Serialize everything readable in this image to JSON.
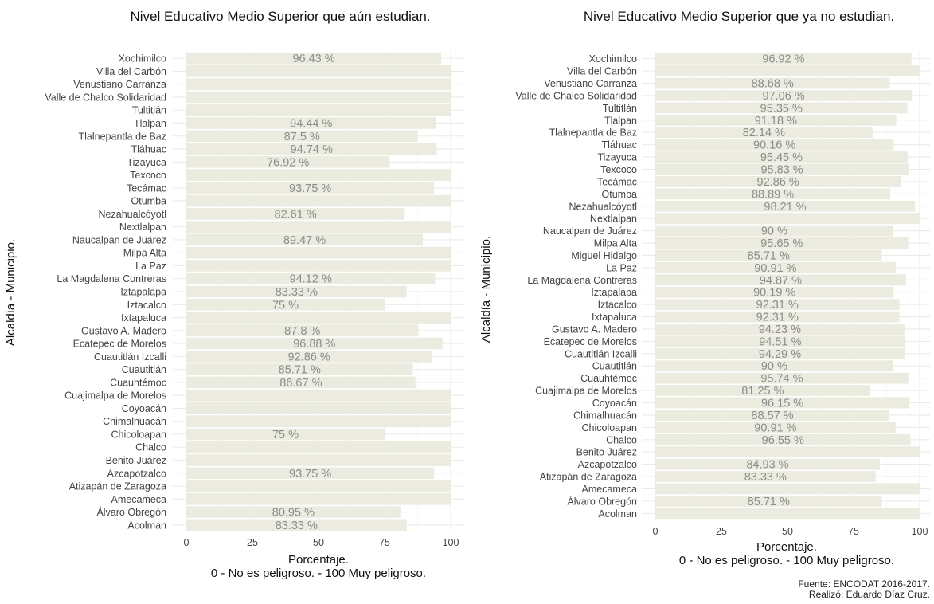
{
  "chart_data": [
    {
      "type": "bar",
      "orientation": "horizontal",
      "title": "Nivel Educativo Medio Superior que aún estudian.",
      "xlabel": "Porcentaje.",
      "xlabel_sub": "0 - No es peligroso. - 100 Muy peligroso.",
      "ylabel": "Alcaldía - Municipio.",
      "xlim": [
        0,
        100
      ],
      "xticks": [
        0,
        25,
        50,
        75,
        100
      ],
      "grid": true,
      "categories": [
        "Xochimilco",
        "Villa del Carbón",
        "Venustiano Carranza",
        "Valle de Chalco Solidaridad",
        "Tultitlán",
        "Tlalpan",
        "Tlalnepantla de Baz",
        "Tláhuac",
        "Tizayuca",
        "Texcoco",
        "Tecámac",
        "Otumba",
        "Nezahualcóyotl",
        "Nextlalpan",
        "Naucalpan de Juárez",
        "Milpa Alta",
        "La Paz",
        "La Magdalena Contreras",
        "Iztapalapa",
        "Iztacalco",
        "Ixtapaluca",
        "Gustavo A. Madero",
        "Ecatepec de Morelos",
        "Cuautitlán Izcalli",
        "Cuautitlán",
        "Cuauhtémoc",
        "Cuajimalpa de Morelos",
        "Coyoacán",
        "Chimalhuacán",
        "Chicoloapan",
        "Chalco",
        "Benito Juárez",
        "Azcapotzalco",
        "Atizapán de Zaragoza",
        "Amecameca",
        "Álvaro Obregón",
        "Acolman"
      ],
      "values": [
        96.43,
        100,
        100,
        100,
        100,
        94.44,
        87.5,
        94.74,
        76.92,
        100,
        93.75,
        100,
        82.61,
        100,
        89.47,
        100,
        100,
        94.12,
        83.33,
        75,
        100,
        87.8,
        96.88,
        92.86,
        85.71,
        86.67,
        100,
        100,
        100,
        75,
        100,
        100,
        93.75,
        100,
        100,
        80.95,
        83.33
      ],
      "labels": [
        "96.43 %",
        "",
        "",
        "",
        "",
        "94.44 %",
        "87.5 %",
        "94.74 %",
        "76.92 %",
        "",
        "93.75 %",
        "",
        "82.61 %",
        "",
        "89.47 %",
        "",
        "",
        "94.12 %",
        "83.33 %",
        "75 %",
        "",
        "87.8 %",
        "96.88 %",
        "92.86 %",
        "85.71 %",
        "86.67 %",
        "",
        "",
        "",
        "75 %",
        "",
        "",
        "93.75 %",
        "",
        "",
        "80.95 %",
        "83.33 %"
      ],
      "bar_color": "#ecebe0",
      "label_color": "#8c8c8c"
    },
    {
      "type": "bar",
      "orientation": "horizontal",
      "title": "Nivel Educativo Medio Superior que ya no estudian.",
      "xlabel": "Porcentaje.",
      "xlabel_sub": "0 - No es peligroso. - 100 Muy peligroso.",
      "ylabel": "Alcaldía - Municipio.",
      "xlim": [
        0,
        100
      ],
      "xticks": [
        0,
        25,
        50,
        75,
        100
      ],
      "grid": true,
      "categories": [
        "Xochimilco",
        "Villa del Carbón",
        "Venustiano Carranza",
        "Valle de Chalco Solidaridad",
        "Tultitlán",
        "Tlalpan",
        "Tlalnepantla de Baz",
        "Tláhuac",
        "Tizayuca",
        "Texcoco",
        "Tecámac",
        "Otumba",
        "Nezahualcóyotl",
        "Nextlalpan",
        "Naucalpan de Juárez",
        "Milpa Alta",
        "Miguel Hidalgo",
        "La Paz",
        "La Magdalena Contreras",
        "Iztapalapa",
        "Iztacalco",
        "Ixtapaluca",
        "Gustavo A. Madero",
        "Ecatepec de Morelos",
        "Cuautitlán Izcalli",
        "Cuautitlán",
        "Cuauhtémoc",
        "Cuajimalpa de Morelos",
        "Coyoacán",
        "Chimalhuacán",
        "Chicoloapan",
        "Chalco",
        "Benito Juárez",
        "Azcapotzalco",
        "Atizapán de Zaragoza",
        "Amecameca",
        "Álvaro Obregón",
        "Acolman"
      ],
      "values": [
        96.92,
        100,
        88.68,
        97.06,
        95.35,
        91.18,
        82.14,
        90.16,
        95.45,
        95.83,
        92.86,
        88.89,
        98.21,
        100,
        90,
        95.65,
        85.71,
        90.91,
        94.87,
        90.19,
        92.31,
        92.31,
        94.23,
        94.51,
        94.29,
        90,
        95.74,
        81.25,
        96.15,
        88.57,
        90.91,
        96.55,
        100,
        84.93,
        83.33,
        100,
        85.71,
        100
      ],
      "labels": [
        "96.92 %",
        "",
        "88.68 %",
        "97.06 %",
        "95.35 %",
        "91.18 %",
        "82.14 %",
        "90.16 %",
        "95.45 %",
        "95.83 %",
        "92.86 %",
        "88.89 %",
        "98.21 %",
        "",
        "90 %",
        "95.65 %",
        "85.71 %",
        "90.91 %",
        "94.87 %",
        "90.19 %",
        "92.31 %",
        "92.31 %",
        "94.23 %",
        "94.51 %",
        "94.29 %",
        "90 %",
        "95.74 %",
        "81.25 %",
        "96.15 %",
        "88.57 %",
        "90.91 %",
        "96.55 %",
        "",
        "84.93 %",
        "83.33 %",
        "",
        "85.71 %",
        ""
      ],
      "bar_color": "#ecebe0",
      "label_color": "#8c8c8c"
    }
  ],
  "caption": {
    "source": "Fuente: ENCODAT 2016-2017.",
    "author": "Realizó: Eduardo Díaz Cruz."
  }
}
